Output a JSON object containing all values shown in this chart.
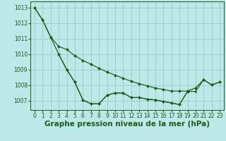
{
  "background_color": "#bde8e8",
  "grid_color": "#9ecece",
  "line_color": "#1a5c1a",
  "xlabel": "Graphe pression niveau de la mer (hPa)",
  "xlabel_fontsize": 7.5,
  "tick_fontsize": 5.5,
  "ylim": [
    1006.4,
    1013.4
  ],
  "xlim": [
    -0.5,
    23.5
  ],
  "yticks": [
    1007,
    1008,
    1009,
    1010,
    1011,
    1012,
    1013
  ],
  "xticks": [
    0,
    1,
    2,
    3,
    4,
    5,
    6,
    7,
    8,
    9,
    10,
    11,
    12,
    13,
    14,
    15,
    16,
    17,
    18,
    19,
    20,
    21,
    22,
    23
  ],
  "s1_x": [
    0,
    1,
    2,
    3,
    4,
    5,
    6,
    7,
    8,
    9,
    10,
    11,
    12,
    13,
    14,
    15,
    16,
    17,
    18,
    19,
    20,
    21,
    22,
    23
  ],
  "s1_y": [
    1013.0,
    1012.2,
    1011.1,
    1010.5,
    1010.3,
    1009.9,
    1009.6,
    1009.35,
    1009.1,
    1008.85,
    1008.65,
    1008.45,
    1008.25,
    1008.1,
    1007.95,
    1007.82,
    1007.72,
    1007.62,
    1007.62,
    1007.62,
    1007.82,
    1008.35,
    1008.02,
    1008.2
  ],
  "s2_x": [
    0,
    1,
    2,
    3,
    4,
    5,
    6,
    7,
    8,
    9,
    10,
    11,
    12,
    13,
    14,
    15,
    16,
    17,
    18,
    19,
    20,
    21,
    22,
    23
  ],
  "s2_y": [
    1013.0,
    1012.2,
    1011.1,
    1010.0,
    1009.0,
    1008.2,
    1007.05,
    1006.8,
    1006.8,
    1007.35,
    1007.5,
    1007.5,
    1007.2,
    1007.2,
    1007.1,
    1007.05,
    1006.95,
    1006.85,
    1006.75,
    1007.6,
    1007.6,
    1008.35,
    1008.02,
    1008.2
  ],
  "s3_x": [
    3,
    4,
    5,
    6,
    7,
    8,
    9,
    10,
    11,
    12,
    13,
    14,
    15,
    16,
    17,
    18,
    19
  ],
  "s3_y": [
    1010.0,
    1009.0,
    1008.2,
    1007.05,
    1006.8,
    1006.8,
    1007.35,
    1007.5,
    1007.5,
    1007.2,
    1007.2,
    1007.1,
    1007.05,
    1006.95,
    1006.85,
    1006.75,
    1007.6
  ]
}
